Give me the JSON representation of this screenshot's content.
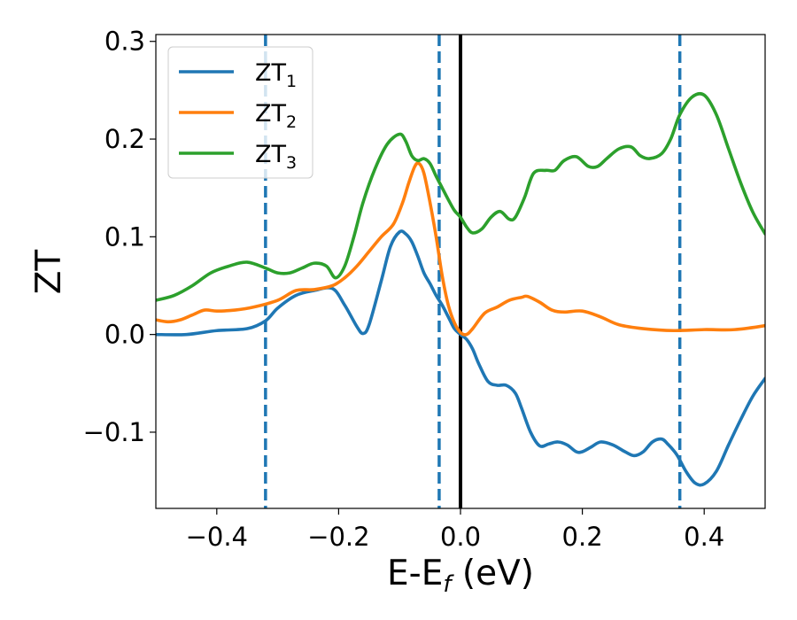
{
  "chart_data": {
    "type": "line",
    "xlabel": "E-E",
    "xlabel_sub": "f",
    "xlabel_unit": " (eV)",
    "ylabel": "ZT",
    "xlim": [
      -0.5,
      0.5
    ],
    "ylim": [
      -0.178,
      0.307
    ],
    "xticks": [
      -0.4,
      -0.2,
      0.0,
      0.2,
      0.4
    ],
    "xtick_labels": [
      "−0.4",
      "−0.2",
      "0.0",
      "0.2",
      "0.4"
    ],
    "yticks": [
      -0.1,
      0.0,
      0.1,
      0.2,
      0.3
    ],
    "ytick_labels": [
      "−0.1",
      "0.0",
      "0.1",
      "0.2",
      "0.3"
    ],
    "grid": false,
    "legend_position": "upper-left",
    "vlines": [
      {
        "x": -0.32,
        "style": "dashed",
        "color": "#1f77b4"
      },
      {
        "x": -0.035,
        "style": "dashed",
        "color": "#1f77b4"
      },
      {
        "x": 0.0,
        "style": "solid",
        "color": "#000000"
      },
      {
        "x": 0.36,
        "style": "dashed",
        "color": "#1f77b4"
      }
    ],
    "series": [
      {
        "name": "ZT",
        "subscript": "1",
        "color": "#1f77b4",
        "x": [
          -0.5,
          -0.45,
          -0.4,
          -0.35,
          -0.32,
          -0.3,
          -0.27,
          -0.24,
          -0.21,
          -0.19,
          -0.17,
          -0.16,
          -0.15,
          -0.13,
          -0.115,
          -0.1,
          -0.09,
          -0.08,
          -0.07,
          -0.06,
          -0.05,
          -0.04,
          -0.03,
          -0.02,
          -0.01,
          0.0,
          0.01,
          0.02,
          0.03,
          0.045,
          0.06,
          0.075,
          0.09,
          0.1,
          0.115,
          0.13,
          0.145,
          0.16,
          0.175,
          0.19,
          0.2,
          0.215,
          0.23,
          0.25,
          0.27,
          0.285,
          0.3,
          0.315,
          0.33,
          0.34,
          0.355,
          0.37,
          0.385,
          0.4,
          0.42,
          0.44,
          0.46,
          0.48,
          0.5
        ],
        "y": [
          0.0,
          0.0,
          0.004,
          0.006,
          0.014,
          0.027,
          0.04,
          0.045,
          0.047,
          0.03,
          0.008,
          0.001,
          0.01,
          0.055,
          0.09,
          0.105,
          0.103,
          0.095,
          0.08,
          0.063,
          0.052,
          0.04,
          0.03,
          0.018,
          0.006,
          0.0,
          -0.005,
          -0.015,
          -0.03,
          -0.048,
          -0.052,
          -0.052,
          -0.06,
          -0.075,
          -0.1,
          -0.114,
          -0.112,
          -0.11,
          -0.113,
          -0.12,
          -0.12,
          -0.115,
          -0.11,
          -0.113,
          -0.12,
          -0.124,
          -0.12,
          -0.11,
          -0.107,
          -0.112,
          -0.123,
          -0.14,
          -0.152,
          -0.153,
          -0.14,
          -0.113,
          -0.087,
          -0.063,
          -0.045
        ]
      },
      {
        "name": "ZT",
        "subscript": "2",
        "color": "#ff7f0e",
        "x": [
          -0.5,
          -0.48,
          -0.46,
          -0.44,
          -0.42,
          -0.4,
          -0.37,
          -0.34,
          -0.3,
          -0.27,
          -0.24,
          -0.21,
          -0.19,
          -0.17,
          -0.15,
          -0.13,
          -0.11,
          -0.095,
          -0.085,
          -0.075,
          -0.068,
          -0.06,
          -0.05,
          -0.04,
          -0.03,
          -0.02,
          -0.01,
          0.0,
          0.01,
          0.02,
          0.04,
          0.06,
          0.08,
          0.1,
          0.11,
          0.13,
          0.15,
          0.17,
          0.2,
          0.23,
          0.26,
          0.3,
          0.35,
          0.4,
          0.45,
          0.5
        ],
        "y": [
          0.015,
          0.013,
          0.015,
          0.02,
          0.025,
          0.024,
          0.025,
          0.028,
          0.035,
          0.045,
          0.046,
          0.05,
          0.058,
          0.07,
          0.085,
          0.1,
          0.113,
          0.135,
          0.155,
          0.172,
          0.175,
          0.165,
          0.135,
          0.1,
          0.06,
          0.03,
          0.012,
          0.002,
          0.0,
          0.006,
          0.022,
          0.028,
          0.035,
          0.038,
          0.039,
          0.033,
          0.025,
          0.023,
          0.024,
          0.018,
          0.01,
          0.006,
          0.004,
          0.005,
          0.005,
          0.009
        ]
      },
      {
        "name": "ZT",
        "subscript": "3",
        "color": "#2ca02c",
        "x": [
          -0.5,
          -0.47,
          -0.44,
          -0.41,
          -0.38,
          -0.35,
          -0.32,
          -0.3,
          -0.28,
          -0.26,
          -0.24,
          -0.22,
          -0.205,
          -0.19,
          -0.175,
          -0.16,
          -0.14,
          -0.12,
          -0.1,
          -0.09,
          -0.08,
          -0.07,
          -0.06,
          -0.05,
          -0.04,
          -0.03,
          -0.02,
          -0.01,
          0.0,
          0.01,
          0.02,
          0.035,
          0.05,
          0.065,
          0.08,
          0.09,
          0.105,
          0.12,
          0.14,
          0.155,
          0.17,
          0.19,
          0.21,
          0.225,
          0.24,
          0.26,
          0.28,
          0.295,
          0.31,
          0.33,
          0.345,
          0.36,
          0.38,
          0.4,
          0.42,
          0.44,
          0.46,
          0.48,
          0.5
        ],
        "y": [
          0.035,
          0.04,
          0.05,
          0.063,
          0.07,
          0.074,
          0.068,
          0.063,
          0.063,
          0.068,
          0.073,
          0.07,
          0.058,
          0.07,
          0.1,
          0.135,
          0.17,
          0.195,
          0.205,
          0.198,
          0.183,
          0.178,
          0.18,
          0.175,
          0.162,
          0.15,
          0.138,
          0.127,
          0.12,
          0.11,
          0.104,
          0.108,
          0.12,
          0.126,
          0.118,
          0.12,
          0.14,
          0.165,
          0.168,
          0.168,
          0.178,
          0.182,
          0.172,
          0.172,
          0.18,
          0.19,
          0.192,
          0.183,
          0.18,
          0.185,
          0.2,
          0.225,
          0.243,
          0.245,
          0.225,
          0.19,
          0.155,
          0.125,
          0.103
        ]
      }
    ]
  }
}
